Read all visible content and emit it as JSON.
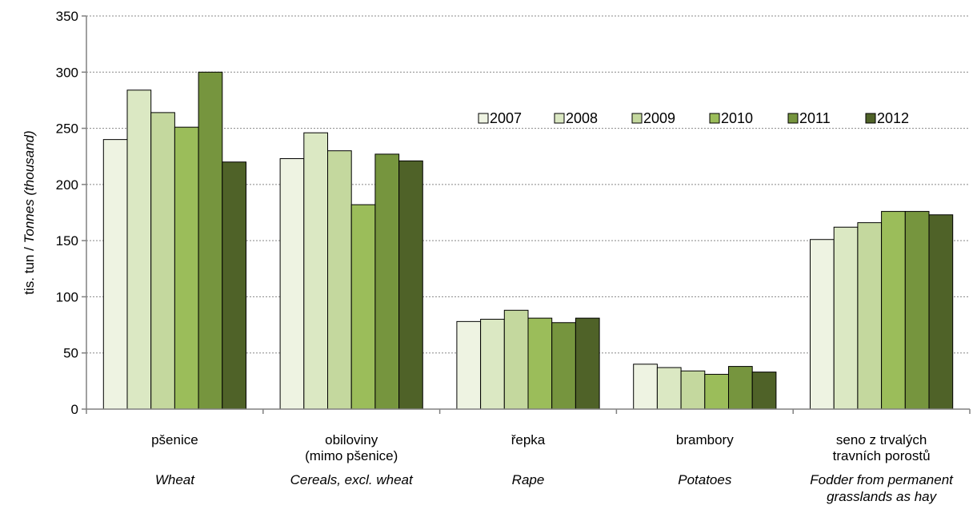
{
  "chart_data": {
    "type": "bar",
    "ylabel_plain": "tis. tun / ",
    "ylabel_italic": "Tonnes (thousand)",
    "ylim": [
      0,
      350
    ],
    "yticks": [
      "0",
      "50",
      "100",
      "150",
      "200",
      "250",
      "300",
      "350"
    ],
    "grid": true,
    "legend_position": "top-right",
    "categories": [
      {
        "cz": [
          "pšenice"
        ],
        "en": [
          "Wheat"
        ]
      },
      {
        "cz": [
          "obiloviny",
          "(mimo pšenice)"
        ],
        "en": [
          "Cereals, excl. wheat"
        ]
      },
      {
        "cz": [
          "řepka"
        ],
        "en": [
          "Rape"
        ]
      },
      {
        "cz": [
          "brambory"
        ],
        "en": [
          "Potatoes"
        ]
      },
      {
        "cz": [
          "seno z trvalých",
          "travních porostů"
        ],
        "en": [
          "Fodder  from permanent",
          "grasslands as hay"
        ]
      }
    ],
    "series": [
      {
        "name": "2007",
        "color": "#eef3e2",
        "values": [
          240,
          223,
          78,
          40,
          151
        ]
      },
      {
        "name": "2008",
        "color": "#dbe8c3",
        "values": [
          284,
          246,
          80,
          37,
          162
        ]
      },
      {
        "name": "2009",
        "color": "#c4d89e",
        "values": [
          264,
          230,
          88,
          34,
          166
        ]
      },
      {
        "name": "2010",
        "color": "#9bbd5a",
        "values": [
          251,
          182,
          81,
          31,
          176
        ]
      },
      {
        "name": "2011",
        "color": "#76953e",
        "values": [
          300,
          227,
          77,
          38,
          176
        ]
      },
      {
        "name": "2012",
        "color": "#4f6228",
        "values": [
          220,
          221,
          81,
          33,
          173
        ]
      }
    ]
  }
}
